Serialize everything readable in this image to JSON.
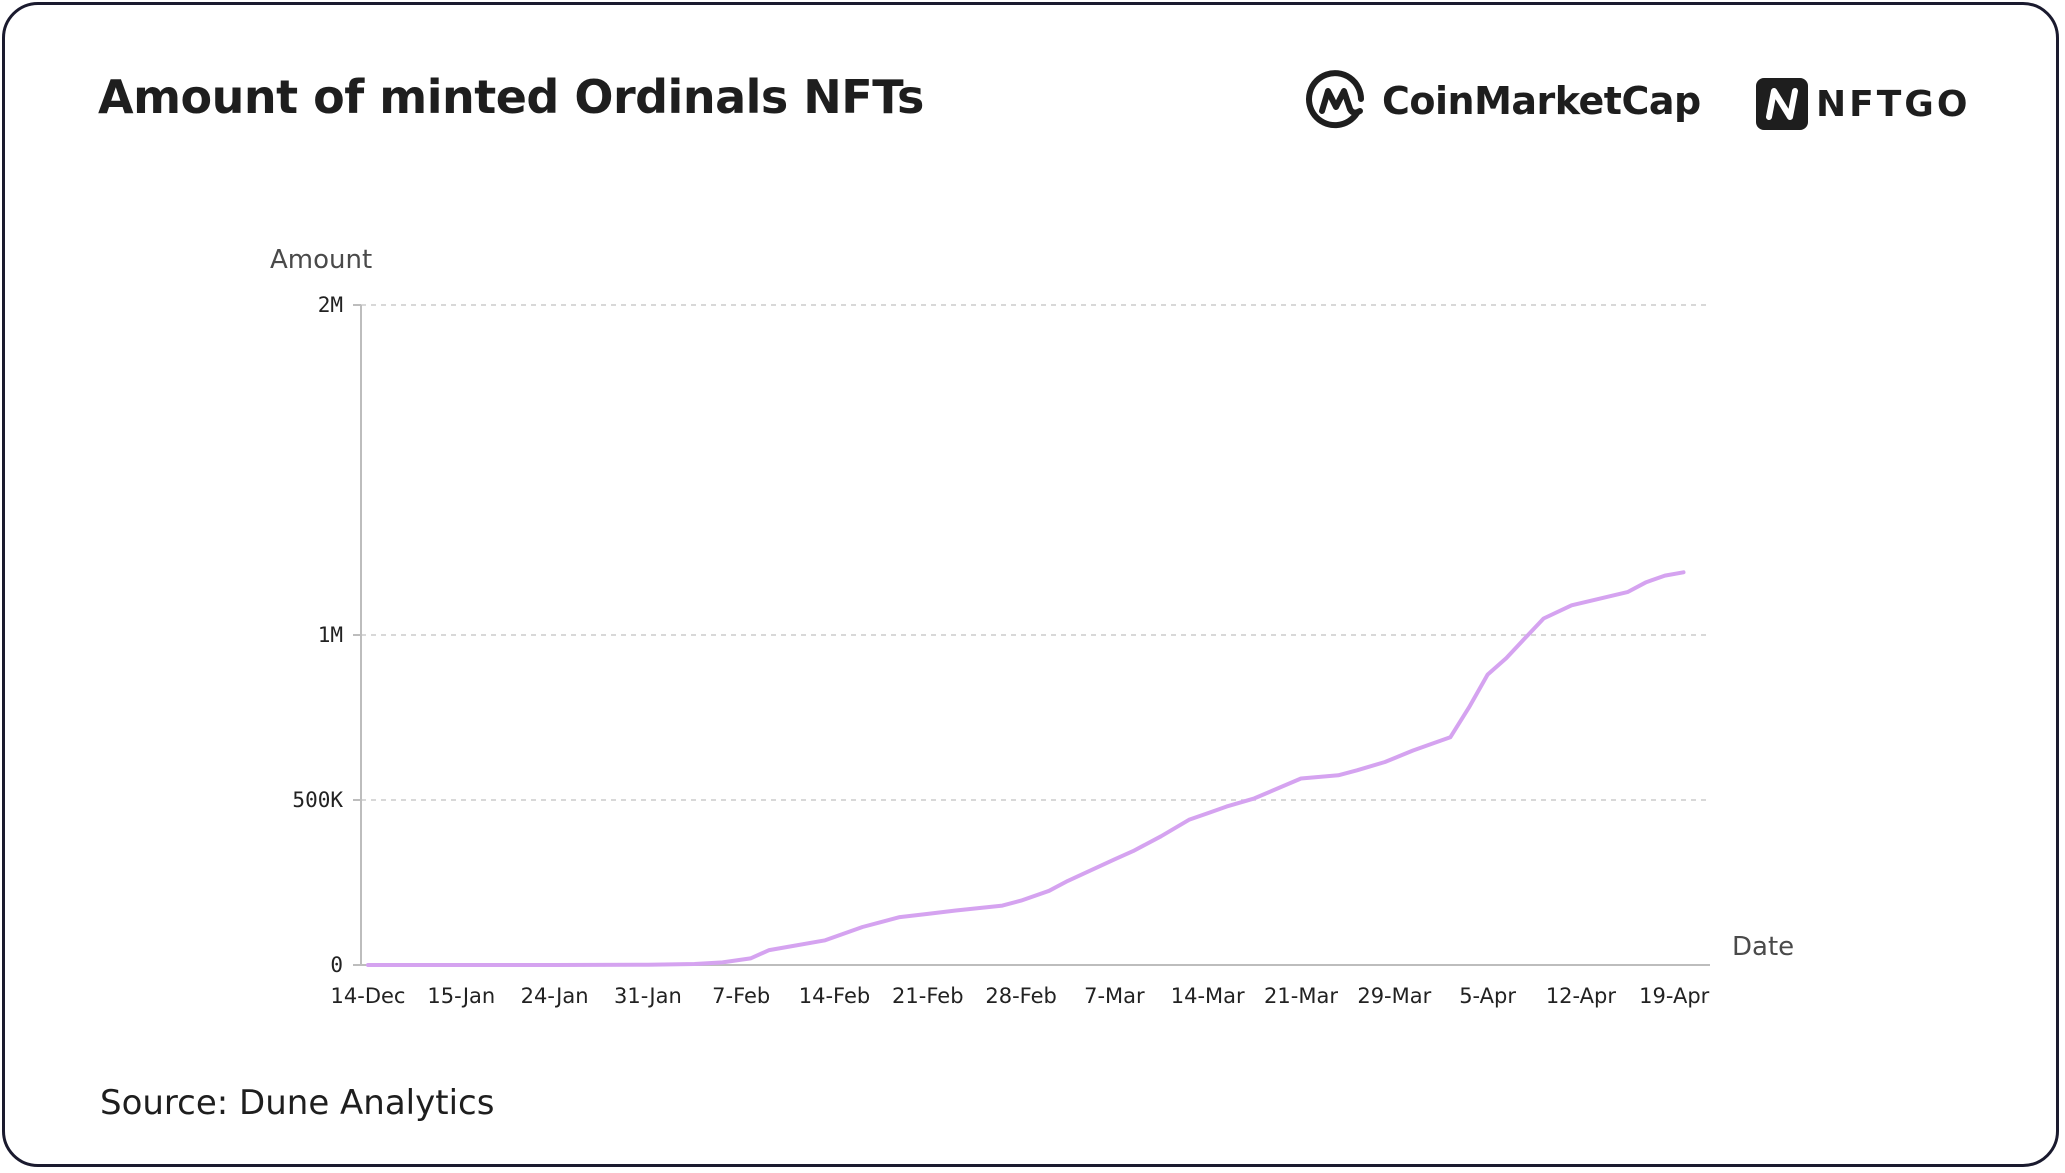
{
  "header": {
    "title": "Amount of minted Ordinals NFTs",
    "logos": [
      {
        "name": "CoinMarketCap",
        "icon": "coinmarketcap-logo-icon"
      },
      {
        "name": "NFTGO",
        "icon": "nftgo-logo-icon"
      }
    ]
  },
  "footer": {
    "source": "Source: Dune Analytics"
  },
  "colors": {
    "line": "#d5a3f0",
    "grid": "#cccccc",
    "axis": "#bdbdbd",
    "border": "#1a1a2e"
  },
  "chart_data": {
    "type": "line",
    "title": "Amount of minted Ordinals NFTs",
    "xlabel": "Date",
    "ylabel": "Amount",
    "x_tick_labels": [
      "14-Dec",
      "15-Jan",
      "24-Jan",
      "31-Jan",
      "7-Feb",
      "14-Feb",
      "21-Feb",
      "28-Feb",
      "7-Mar",
      "14-Mar",
      "21-Mar",
      "29-Mar",
      "5-Apr",
      "12-Apr",
      "19-Apr"
    ],
    "y_ticks": [
      0,
      500000,
      1000000,
      2000000
    ],
    "y_tick_labels": [
      "0",
      "500K",
      "1M",
      "2M"
    ],
    "ylim": [
      0,
      2000000
    ],
    "grid": true,
    "series": [
      {
        "values": [
          [
            0,
            0
          ],
          [
            1,
            0
          ],
          [
            2,
            0
          ],
          [
            3,
            1000
          ],
          [
            3.5,
            3000
          ],
          [
            3.8,
            8000
          ],
          [
            4.1,
            20000
          ],
          [
            4.3,
            45000
          ],
          [
            4.5,
            55000
          ],
          [
            4.9,
            75000
          ],
          [
            5.3,
            115000
          ],
          [
            5.5,
            130000
          ],
          [
            5.7,
            145000
          ],
          [
            6.0,
            155000
          ],
          [
            6.3,
            165000
          ],
          [
            6.8,
            180000
          ],
          [
            7.0,
            195000
          ],
          [
            7.3,
            225000
          ],
          [
            7.5,
            255000
          ],
          [
            8.0,
            320000
          ],
          [
            8.2,
            345000
          ],
          [
            8.5,
            390000
          ],
          [
            8.8,
            440000
          ],
          [
            9.0,
            460000
          ],
          [
            9.2,
            480000
          ],
          [
            9.5,
            505000
          ],
          [
            10.0,
            565000
          ],
          [
            10.4,
            575000
          ],
          [
            10.6,
            590000
          ],
          [
            10.9,
            615000
          ],
          [
            11.2,
            650000
          ],
          [
            11.4,
            670000
          ],
          [
            11.6,
            690000
          ],
          [
            11.8,
            780000
          ],
          [
            12.0,
            880000
          ],
          [
            12.2,
            930000
          ],
          [
            12.4,
            990000
          ],
          [
            12.6,
            1050000
          ],
          [
            12.9,
            1090000
          ],
          [
            13.2,
            1110000
          ],
          [
            13.5,
            1130000
          ],
          [
            13.7,
            1160000
          ],
          [
            13.9,
            1180000
          ],
          [
            14.1,
            1190000
          ]
        ]
      }
    ]
  }
}
